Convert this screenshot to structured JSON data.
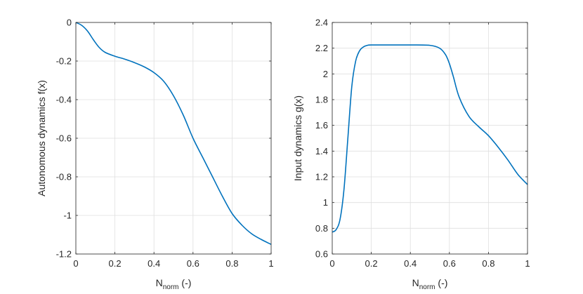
{
  "chart_data": [
    {
      "type": "line",
      "title": "",
      "xlabel": "N",
      "xlabel_subscript": "norm",
      "xlabel_suffix": " (-)",
      "ylabel": "Autonomous dynamics f(x)",
      "xlim": [
        0,
        1
      ],
      "ylim": [
        -1.2,
        0
      ],
      "xticks": [
        0,
        0.2,
        0.4,
        0.6,
        0.8,
        1
      ],
      "xtick_labels": [
        "0",
        "0.2",
        "0.4",
        "0.6",
        "0.8",
        "1"
      ],
      "yticks": [
        -1.2,
        -1,
        -0.8,
        -0.6,
        -0.4,
        -0.2,
        0
      ],
      "ytick_labels": [
        "-1.2",
        "-1",
        "-0.8",
        "-0.6",
        "-0.4",
        "-0.2",
        "0"
      ],
      "grid": true,
      "line_color": "#0072BD",
      "x": [
        0,
        0.03,
        0.06,
        0.09,
        0.12,
        0.15,
        0.2,
        0.25,
        0.3,
        0.35,
        0.4,
        0.45,
        0.5,
        0.55,
        0.6,
        0.65,
        0.7,
        0.75,
        0.8,
        0.85,
        0.9,
        0.95,
        1
      ],
      "y": [
        0,
        -0.015,
        -0.045,
        -0.09,
        -0.13,
        -0.155,
        -0.175,
        -0.19,
        -0.208,
        -0.23,
        -0.26,
        -0.305,
        -0.38,
        -0.48,
        -0.6,
        -0.7,
        -0.8,
        -0.9,
        -0.99,
        -1.05,
        -1.095,
        -1.125,
        -1.15
      ]
    },
    {
      "type": "line",
      "title": "",
      "xlabel": "N",
      "xlabel_subscript": "norm",
      "xlabel_suffix": " (-)",
      "ylabel": "Input dynamics g(x)",
      "xlim": [
        0,
        1
      ],
      "ylim": [
        0.6,
        2.4
      ],
      "xticks": [
        0,
        0.2,
        0.4,
        0.6,
        0.8,
        1
      ],
      "xtick_labels": [
        "0",
        "0.2",
        "0.4",
        "0.6",
        "0.8",
        "1"
      ],
      "yticks": [
        0.6,
        0.8,
        1,
        1.2,
        1.4,
        1.6,
        1.8,
        2,
        2.2,
        2.4
      ],
      "ytick_labels": [
        "0.6",
        "0.8",
        "1",
        "1.2",
        "1.4",
        "1.6",
        "1.8",
        "2",
        "2.2",
        "2.4"
      ],
      "grid": true,
      "line_color": "#0072BD",
      "x": [
        0,
        0.02,
        0.04,
        0.06,
        0.08,
        0.1,
        0.12,
        0.14,
        0.16,
        0.18,
        0.2,
        0.3,
        0.4,
        0.5,
        0.55,
        0.58,
        0.6,
        0.62,
        0.65,
        0.7,
        0.75,
        0.8,
        0.85,
        0.9,
        0.95,
        1
      ],
      "y": [
        0.77,
        0.79,
        0.87,
        1.1,
        1.5,
        1.9,
        2.1,
        2.18,
        2.21,
        2.222,
        2.225,
        2.225,
        2.225,
        2.222,
        2.2,
        2.15,
        2.08,
        1.98,
        1.82,
        1.67,
        1.59,
        1.52,
        1.43,
        1.33,
        1.22,
        1.14
      ]
    }
  ]
}
